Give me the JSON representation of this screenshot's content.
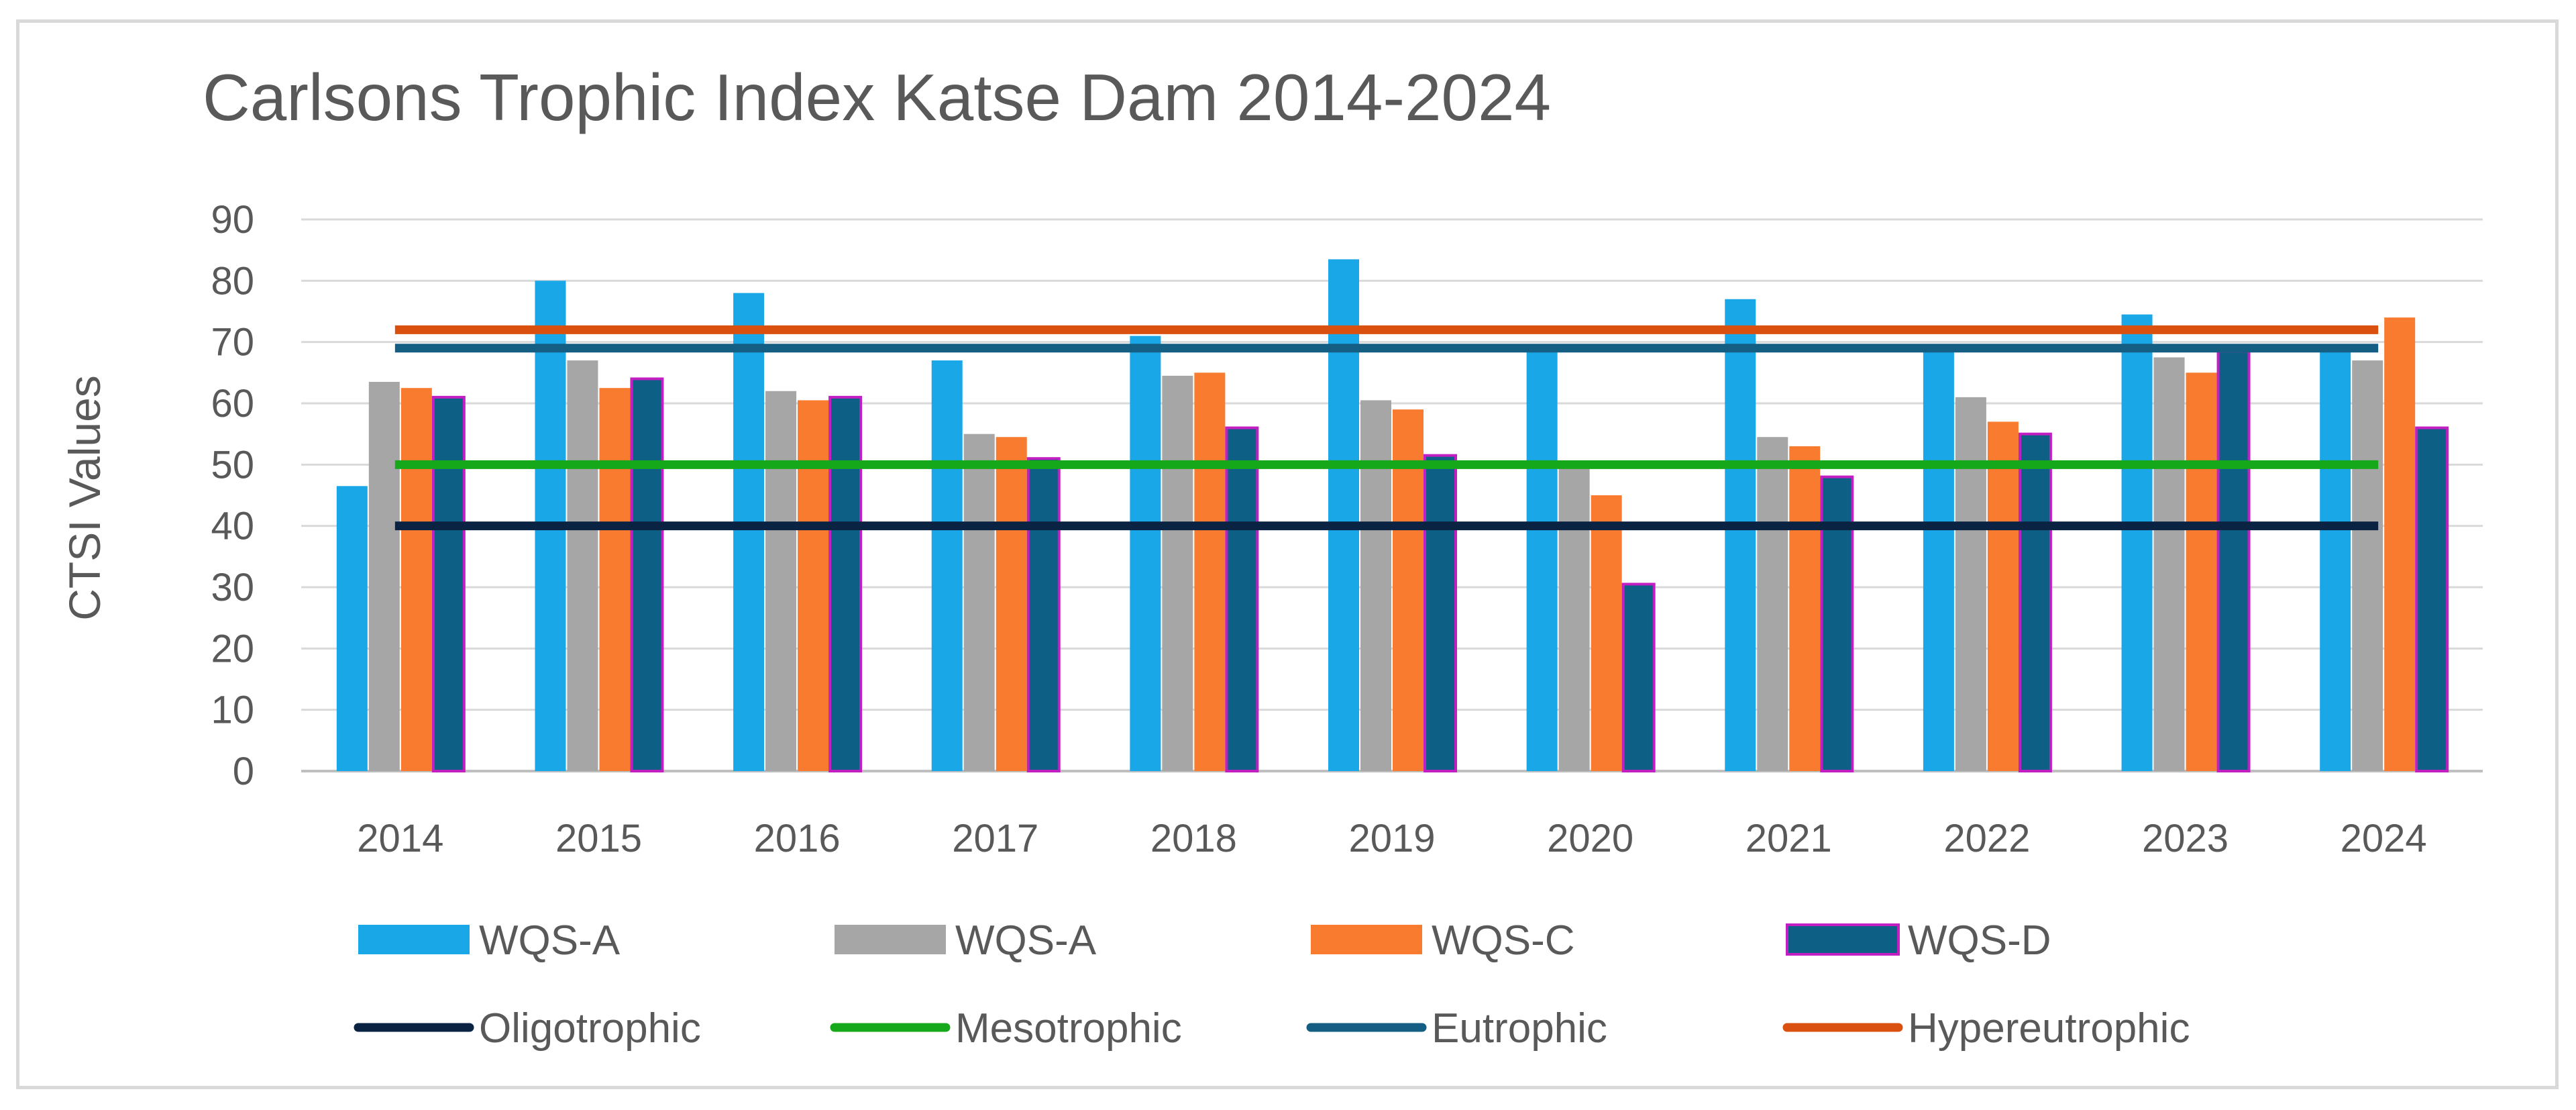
{
  "chart_data": {
    "type": "bar",
    "title": "Carlsons Trophic Index Katse Dam 2014-2024",
    "xlabel": "",
    "ylabel": "CTSI Values",
    "ylim": [
      0,
      90
    ],
    "yticks": [
      0,
      10,
      20,
      30,
      40,
      50,
      60,
      70,
      80,
      90
    ],
    "grid": true,
    "legend_position": "bottom",
    "categories": [
      "2014",
      "2015",
      "2016",
      "2017",
      "2018",
      "2019",
      "2020",
      "2021",
      "2022",
      "2023",
      "2024"
    ],
    "series": [
      {
        "name": "WQS-A",
        "color": "#1aa7e8",
        "border": "#1aa7e8",
        "values": [
          46.5,
          80,
          78,
          67,
          71,
          83.5,
          68.5,
          77,
          68.5,
          74.5,
          69
        ]
      },
      {
        "name": "WQS-A",
        "color": "#a6a6a6",
        "border": "#a6a6a6",
        "values": [
          63.5,
          67,
          62,
          55,
          64.5,
          60.5,
          50,
          54.5,
          61,
          67.5,
          67
        ]
      },
      {
        "name": "WQS-C",
        "color": "#f97b2f",
        "border": "#f97b2f",
        "values": [
          62.5,
          62.5,
          60.5,
          54.5,
          65,
          59,
          45,
          53,
          57,
          65,
          74
        ]
      },
      {
        "name": "WQS-D",
        "color": "#0e5f85",
        "border": "#c21fc2",
        "values": [
          61,
          64,
          61,
          51,
          56,
          51.5,
          30.5,
          48,
          55,
          68.5,
          56
        ]
      }
    ],
    "reference_lines": [
      {
        "name": "Oligotrophic",
        "value": 40,
        "color": "#0b2342"
      },
      {
        "name": "Mesotrophic",
        "value": 50,
        "color": "#14a81a"
      },
      {
        "name": "Eutrophic",
        "value": 69,
        "color": "#135e82"
      },
      {
        "name": "Hypereutrophic",
        "value": 72,
        "color": "#d9500f"
      }
    ]
  }
}
